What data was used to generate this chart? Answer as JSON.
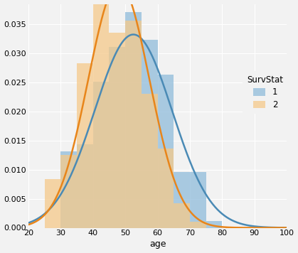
{
  "xlabel": "age",
  "xlim": [
    20,
    100
  ],
  "ylim": [
    0,
    0.0385
  ],
  "yticks": [
    0.0,
    0.005,
    0.01,
    0.015,
    0.02,
    0.025,
    0.03,
    0.035
  ],
  "xticks": [
    20,
    30,
    40,
    50,
    60,
    70,
    80,
    90,
    100
  ],
  "color1": "#8fbcdb",
  "color2": "#f5c98a",
  "line_color1": "#4a8ab5",
  "line_color2": "#e8851a",
  "alpha_hist": 0.75,
  "bins": [
    20,
    25,
    30,
    35,
    40,
    45,
    50,
    55,
    60,
    65,
    70,
    75,
    80,
    85,
    90,
    95
  ],
  "kde1_mean": 52.5,
  "kde1_std": 12.0,
  "kde2_mean": 48.0,
  "kde2_std": 9.5,
  "legend_title": "SurvStat",
  "legend_labels": [
    "1",
    "2"
  ],
  "bg_color": "#f2f2f2",
  "grid_color": "#ffffff",
  "figsize": [
    4.19,
    3.56
  ],
  "dpi": 100
}
